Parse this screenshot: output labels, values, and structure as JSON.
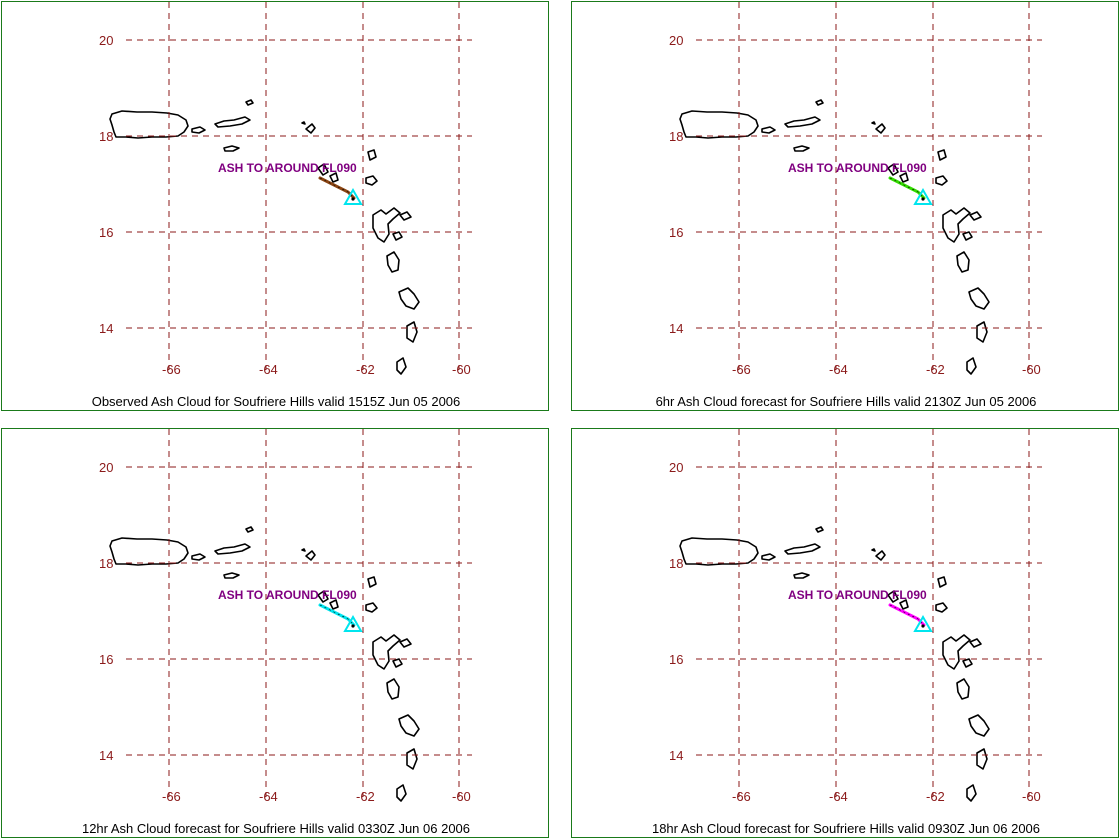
{
  "axes": {
    "lat_ticks": [
      "20",
      "18",
      "16",
      "14"
    ],
    "lon_ticks": [
      "-66",
      "-64",
      "-62",
      "-60"
    ]
  },
  "colors": {
    "grid": "#8b1a1a",
    "tick_label": "#8b1a1a",
    "coast": "#000000",
    "label_text": "#800080",
    "volcano_marker": "#00e5ee",
    "border": "#1a7a1a"
  },
  "panels": [
    {
      "caption": "Observed Ash Cloud for Soufriere  Hills valid 1515Z Jun 05 2006",
      "annotation": "ASH TO AROUND FL090",
      "plume_color": "#8b4513"
    },
    {
      "caption": "6hr Ash Cloud forecast for Soufriere  Hills valid 2130Z Jun 05 2006",
      "annotation": "ASH TO AROUND FL090",
      "plume_color": "#33dd00"
    },
    {
      "caption": "12hr Ash Cloud forecast for Soufriere  Hills valid 0330Z Jun 06 2006",
      "annotation": "ASH TO AROUND FL090",
      "plume_color": "#00e5ee"
    },
    {
      "caption": "18hr Ash Cloud forecast for Soufriere  Hills valid 0930Z Jun 06 2006",
      "annotation": "ASH TO AROUND FL090",
      "plume_color": "#ff00ff"
    }
  ]
}
